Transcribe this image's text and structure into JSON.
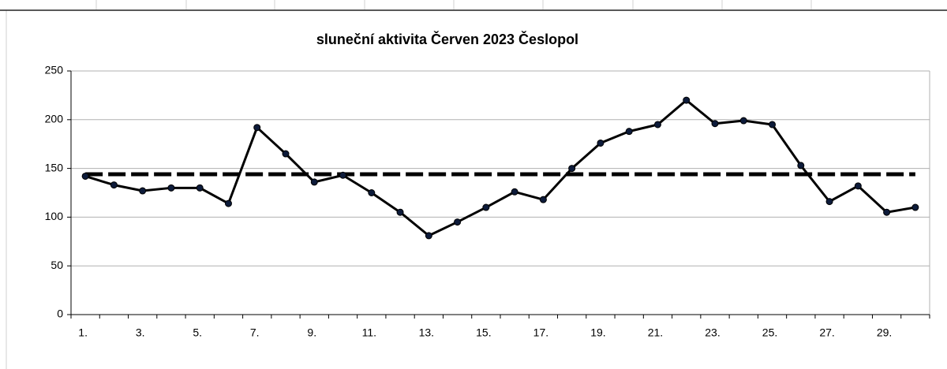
{
  "chart_data": {
    "type": "line",
    "title": "sluneční aktivita  Červen 2023 Česlopol",
    "categories": [
      "1.",
      null,
      "3.",
      null,
      "5.",
      null,
      "7.",
      null,
      "9.",
      null,
      "11.",
      null,
      "13.",
      null,
      "15.",
      null,
      "17.",
      null,
      "19.",
      null,
      "21.",
      null,
      "23.",
      null,
      "25.",
      null,
      "27.",
      null,
      "29.",
      null
    ],
    "series": [
      {
        "color": "#000000",
        "marker": "#0d1b3a",
        "values": [
          142,
          133,
          127,
          130,
          130,
          114,
          192,
          165,
          136,
          143,
          125,
          105,
          81,
          95,
          110,
          126,
          118,
          150,
          176,
          188,
          195,
          220,
          196,
          199,
          195,
          153,
          116,
          132,
          105,
          110
        ]
      },
      {
        "color": "#000000",
        "dashed": true,
        "values": [
          144,
          144,
          144,
          144,
          144,
          144,
          144,
          144,
          144,
          144,
          144,
          144,
          144,
          144,
          144,
          144,
          144,
          144,
          144,
          144,
          144,
          144,
          144,
          144,
          144,
          144,
          144,
          144,
          144,
          144
        ]
      }
    ],
    "ylim": [
      0,
      250
    ],
    "yticks": [
      0,
      50,
      100,
      150,
      200,
      250
    ],
    "grid": true
  }
}
